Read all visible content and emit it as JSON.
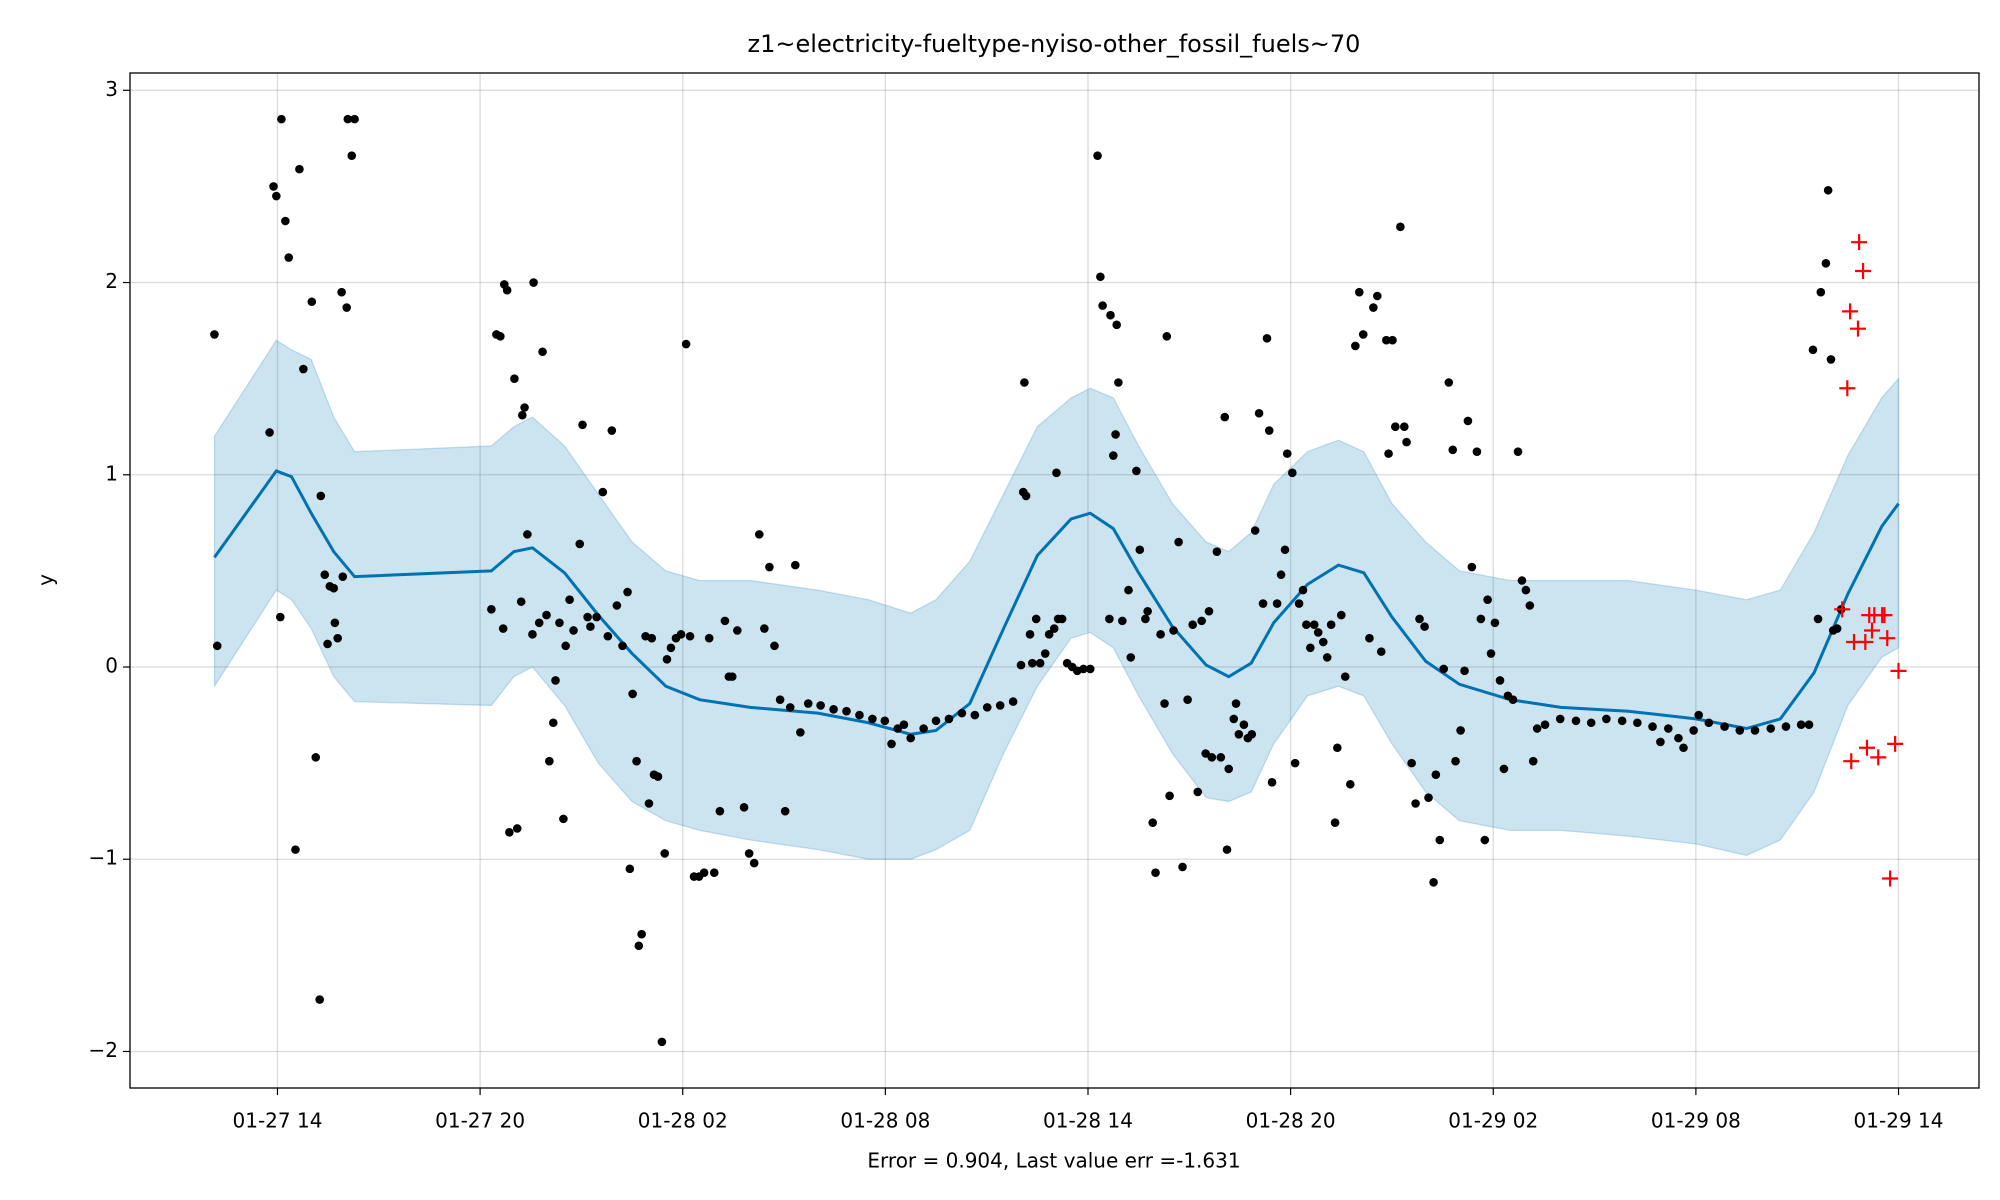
{
  "chart_data": {
    "type": "line",
    "title": "z1~electricity-fueltype-nyiso-other_fossil_fuels~70",
    "ylabel": "y",
    "xlabel": "Error = 0.904, Last value err =-1.631",
    "grid": true,
    "xlim": [
      "01-27 09:38",
      "01-29 16:23"
    ],
    "xticks": [
      "01-27 14",
      "01-27 20",
      "01-28 02",
      "01-28 08",
      "01-28 14",
      "01-28 20",
      "01-29 02",
      "01-29 08",
      "01-29 14"
    ],
    "ylim": [
      -2.19,
      3.09
    ],
    "yticks": [
      {
        "value": -2,
        "label": "−2"
      },
      {
        "value": -1,
        "label": "−1"
      },
      0,
      1,
      2,
      3
    ],
    "series": [
      {
        "color": "#0072b2",
        "marker": "none",
        "band_color": "#0072b2",
        "x": [
          "01-27 12:08",
          "01-27 13:58",
          "01-27 14:25",
          "01-27 15:00",
          "01-27 15:40",
          "01-27 16:17",
          "01-27 20:20",
          "01-27 21:00",
          "01-27 21:33",
          "01-27 22:30",
          "01-27 23:30",
          "01-28 00:30",
          "01-28 01:30",
          "01-28 02:30",
          "01-28 04:00",
          "01-28 06:00",
          "01-28 07:30",
          "01-28 08:45",
          "01-28 09:30",
          "01-28 10:30",
          "01-28 11:30",
          "01-28 12:30",
          "01-28 13:30",
          "01-28 14:04",
          "01-28 14:45",
          "01-28 15:30",
          "01-28 16:30",
          "01-28 17:30",
          "01-28 18:10",
          "01-28 18:50",
          "01-28 19:30",
          "01-28 20:30",
          "01-28 21:25",
          "01-28 22:10",
          "01-28 23:00",
          "01-29 00:00",
          "01-29 01:00",
          "01-29 02:30",
          "01-29 04:00",
          "01-29 06:00",
          "01-29 08:00",
          "01-29 09:30",
          "01-29 10:30",
          "01-29 11:30",
          "01-29 12:30",
          "01-29 13:30",
          "01-29 14:00"
        ],
        "values": [
          0.57,
          1.02,
          0.99,
          0.8,
          0.6,
          0.47,
          0.5,
          0.6,
          0.62,
          0.49,
          0.27,
          0.07,
          -0.1,
          -0.17,
          -0.21,
          -0.24,
          -0.29,
          -0.35,
          -0.33,
          -0.19,
          0.2,
          0.58,
          0.77,
          0.8,
          0.72,
          0.49,
          0.21,
          0.01,
          -0.05,
          0.02,
          0.23,
          0.43,
          0.53,
          0.49,
          0.26,
          0.03,
          -0.09,
          -0.17,
          -0.21,
          -0.23,
          -0.27,
          -0.32,
          -0.27,
          -0.03,
          0.38,
          0.73,
          0.85
        ],
        "upper": [
          1.2,
          1.7,
          1.65,
          1.6,
          1.3,
          1.12,
          1.15,
          1.25,
          1.3,
          1.15,
          0.9,
          0.65,
          0.5,
          0.45,
          0.45,
          0.4,
          0.35,
          0.28,
          0.35,
          0.55,
          0.9,
          1.25,
          1.4,
          1.45,
          1.4,
          1.15,
          0.85,
          0.65,
          0.6,
          0.7,
          0.95,
          1.12,
          1.18,
          1.12,
          0.85,
          0.65,
          0.5,
          0.45,
          0.45,
          0.45,
          0.4,
          0.35,
          0.4,
          0.7,
          1.1,
          1.4,
          1.5
        ],
        "lower": [
          -0.1,
          0.4,
          0.35,
          0.2,
          -0.05,
          -0.18,
          -0.2,
          -0.05,
          0.0,
          -0.2,
          -0.5,
          -0.7,
          -0.8,
          -0.85,
          -0.9,
          -0.95,
          -1.0,
          -1.0,
          -0.95,
          -0.85,
          -0.45,
          -0.1,
          0.15,
          0.18,
          0.1,
          -0.15,
          -0.45,
          -0.68,
          -0.7,
          -0.65,
          -0.4,
          -0.15,
          -0.1,
          -0.15,
          -0.4,
          -0.65,
          -0.8,
          -0.85,
          -0.85,
          -0.88,
          -0.92,
          -0.98,
          -0.9,
          -0.65,
          -0.2,
          0.05,
          0.1
        ]
      },
      {
        "color": "#000000",
        "marker": "dot",
        "x": [
          "01-27 12:08",
          "01-27 12:13",
          "01-27 13:46",
          "01-27 13:53",
          "01-27 13:58",
          "01-27 14:05",
          "01-27 14:07",
          "01-27 14:14",
          "01-27 14:20",
          "01-27 14:32",
          "01-27 14:39",
          "01-27 14:46",
          "01-27 15:01",
          "01-27 15:08",
          "01-27 15:15",
          "01-27 15:17",
          "01-27 15:24",
          "01-27 15:29",
          "01-27 15:33",
          "01-27 15:40",
          "01-27 15:42",
          "01-27 15:47",
          "01-27 15:54",
          "01-27 15:56",
          "01-27 16:03",
          "01-27 16:05",
          "01-27 16:12",
          "01-27 16:17",
          "01-27 20:20",
          "01-27 20:29",
          "01-27 20:36",
          "01-27 20:41",
          "01-27 20:43",
          "01-27 20:48",
          "01-27 20:52",
          "01-27 21:01",
          "01-27 21:06",
          "01-27 21:13",
          "01-27 21:15",
          "01-27 21:19",
          "01-27 21:24",
          "01-27 21:33",
          "01-27 21:35",
          "01-27 21:45",
          "01-27 21:51",
          "01-27 21:58",
          "01-27 22:03",
          "01-27 22:10",
          "01-27 22:14",
          "01-27 22:21",
          "01-27 22:28",
          "01-27 22:32",
          "01-27 22:39",
          "01-27 22:46",
          "01-27 22:57",
          "01-27 23:02",
          "01-27 23:11",
          "01-27 23:16",
          "01-27 23:27",
          "01-27 23:38",
          "01-27 23:47",
          "01-27 23:54",
          "01-28 00:03",
          "01-28 00:13",
          "01-28 00:22",
          "01-28 00:26",
          "01-28 00:31",
          "01-28 00:38",
          "01-28 00:42",
          "01-28 00:47",
          "01-28 00:54",
          "01-28 01:00",
          "01-28 01:05",
          "01-28 01:09",
          "01-28 01:16",
          "01-28 01:23",
          "01-28 01:28",
          "01-28 01:32",
          "01-28 01:39",
          "01-28 01:48",
          "01-28 01:57",
          "01-28 02:06",
          "01-28 02:13",
          "01-28 02:20",
          "01-28 02:29",
          "01-28 02:38",
          "01-28 02:47",
          "01-28 02:56",
          "01-28 03:06",
          "01-28 03:15",
          "01-28 03:22",
          "01-28 03:28",
          "01-28 03:37",
          "01-28 03:49",
          "01-28 03:58",
          "01-28 04:07",
          "01-28 04:16",
          "01-28 04:25",
          "01-28 04:34",
          "01-28 04:43",
          "01-28 04:53",
          "01-28 05:02",
          "01-28 05:11",
          "01-28 05:20",
          "01-28 05:29",
          "01-28 05:43",
          "01-28 06:05",
          "01-28 06:28",
          "01-28 06:51",
          "01-28 07:14",
          "01-28 07:37",
          "01-28 07:59",
          "01-28 08:11",
          "01-28 08:22",
          "01-28 08:33",
          "01-28 08:45",
          "01-28 09:08",
          "01-28 09:30",
          "01-28 09:53",
          "01-28 10:16",
          "01-28 10:39",
          "01-28 11:01",
          "01-28 11:24",
          "01-28 11:47",
          "01-28 12:01",
          "01-28 12:05",
          "01-28 12:07",
          "01-28 12:10",
          "01-28 12:17",
          "01-28 12:21",
          "01-28 12:28",
          "01-28 12:35",
          "01-28 12:44",
          "01-28 12:51",
          "01-28 13:00",
          "01-28 13:04",
          "01-28 13:07",
          "01-28 13:14",
          "01-28 13:23",
          "01-28 13:32",
          "01-28 13:41",
          "01-28 13:52",
          "01-28 14:04",
          "01-28 14:17",
          "01-28 14:22",
          "01-28 14:26",
          "01-28 14:38",
          "01-28 14:40",
          "01-28 14:45",
          "01-28 14:49",
          "01-28 14:51",
          "01-28 14:54",
          "01-28 15:01",
          "01-28 15:12",
          "01-28 15:16",
          "01-28 15:26",
          "01-28 15:32",
          "01-28 15:42",
          "01-28 15:46",
          "01-28 15:55",
          "01-28 16:00",
          "01-28 16:09",
          "01-28 16:16",
          "01-28 16:20",
          "01-28 16:25",
          "01-28 16:32",
          "01-28 16:41",
          "01-28 16:48",
          "01-28 16:57",
          "01-28 17:06",
          "01-28 17:15",
          "01-28 17:22",
          "01-28 17:29",
          "01-28 17:35",
          "01-28 17:40",
          "01-28 17:49",
          "01-28 17:56",
          "01-28 18:03",
          "01-28 18:07",
          "01-28 18:10",
          "01-28 18:19",
          "01-28 18:23",
          "01-28 18:28",
          "01-28 18:37",
          "01-28 18:44",
          "01-28 18:51",
          "01-28 18:57",
          "01-28 19:04",
          "01-28 19:11",
          "01-28 19:18",
          "01-28 19:22",
          "01-28 19:27",
          "01-28 19:36",
          "01-28 19:43",
          "01-28 19:50",
          "01-28 19:54",
          "01-28 20:03",
          "01-28 20:08",
          "01-28 20:15",
          "01-28 20:22",
          "01-28 20:28",
          "01-28 20:35",
          "01-28 20:42",
          "01-28 20:49",
          "01-28 20:58",
          "01-28 21:05",
          "01-28 21:12",
          "01-28 21:19",
          "01-28 21:23",
          "01-28 21:30",
          "01-28 21:37",
          "01-28 21:46",
          "01-28 21:55",
          "01-28 22:02",
          "01-28 22:09",
          "01-28 22:20",
          "01-28 22:27",
          "01-28 22:34",
          "01-28 22:41",
          "01-28 22:50",
          "01-28 22:54",
          "01-28 23:01",
          "01-28 23:06",
          "01-28 23:15",
          "01-28 23:22",
          "01-28 23:26",
          "01-28 23:35",
          "01-28 23:42",
          "01-28 23:49",
          "01-28 23:58",
          "01-29 00:05",
          "01-29 00:14",
          "01-29 00:18",
          "01-29 00:25",
          "01-29 00:32",
          "01-29 00:41",
          "01-29 00:48",
          "01-29 00:53",
          "01-29 01:02",
          "01-29 01:09",
          "01-29 01:15",
          "01-29 01:22",
          "01-29 01:31",
          "01-29 01:38",
          "01-29 01:45",
          "01-29 01:50",
          "01-29 01:56",
          "01-29 02:03",
          "01-29 02:12",
          "01-29 02:19",
          "01-29 02:26",
          "01-29 02:35",
          "01-29 02:44",
          "01-29 02:51",
          "01-29 02:58",
          "01-29 03:05",
          "01-29 03:11",
          "01-29 03:18",
          "01-29 03:32",
          "01-29 03:59",
          "01-29 04:27",
          "01-29 04:54",
          "01-29 05:21",
          "01-29 05:49",
          "01-29 06:16",
          "01-29 06:43",
          "01-29 06:57",
          "01-29 07:11",
          "01-29 07:29",
          "01-29 07:38",
          "01-29 07:56",
          "01-29 08:05",
          "01-29 08:23",
          "01-29 08:51",
          "01-29 09:18",
          "01-29 09:45",
          "01-29 10:13",
          "01-29 10:40",
          "01-29 11:07",
          "01-29 11:21",
          "01-29 11:28",
          "01-29 11:37",
          "01-29 11:42",
          "01-29 11:51",
          "01-29 11:55",
          "01-29 12:00",
          "01-29 12:04",
          "01-29 12:11",
          "01-29 12:18"
        ],
        "values": [
          1.73,
          0.11,
          1.22,
          2.5,
          2.45,
          0.26,
          2.85,
          2.32,
          2.13,
          -0.95,
          2.59,
          1.55,
          1.9,
          -0.47,
          -1.73,
          0.89,
          0.48,
          0.12,
          0.42,
          0.41,
          0.23,
          0.15,
          1.95,
          0.47,
          1.87,
          2.85,
          2.66,
          2.85,
          0.3,
          1.73,
          1.72,
          0.2,
          1.99,
          1.96,
          -0.86,
          1.5,
          -0.84,
          0.34,
          1.31,
          1.35,
          0.69,
          0.17,
          2.0,
          0.23,
          1.64,
          0.27,
          -0.49,
          -0.29,
          -0.07,
          0.23,
          -0.79,
          0.11,
          0.35,
          0.19,
          0.64,
          1.26,
          0.26,
          0.21,
          0.26,
          0.91,
          0.16,
          1.23,
          0.32,
          0.11,
          0.39,
          -1.05,
          -0.14,
          -0.49,
          -1.45,
          -1.39,
          0.16,
          -0.71,
          0.15,
          -0.56,
          -0.57,
          -1.95,
          -0.97,
          0.04,
          0.1,
          0.15,
          0.17,
          1.68,
          0.16,
          -1.09,
          -1.09,
          -1.07,
          0.15,
          -1.07,
          -0.75,
          0.24,
          -0.05,
          -0.05,
          0.19,
          -0.73,
          -0.97,
          -1.02,
          0.69,
          0.2,
          0.52,
          0.11,
          -0.17,
          -0.75,
          -0.21,
          0.53,
          -0.34,
          -0.19,
          -0.2,
          -0.22,
          -0.23,
          -0.25,
          -0.27,
          -0.28,
          -0.4,
          -0.32,
          -0.3,
          -0.37,
          -0.32,
          -0.28,
          -0.27,
          -0.24,
          -0.25,
          -0.21,
          -0.2,
          -0.18,
          0.01,
          0.91,
          1.48,
          0.89,
          0.17,
          0.02,
          0.25,
          0.02,
          0.07,
          0.17,
          0.2,
          1.01,
          0.25,
          0.25,
          0.02,
          0.0,
          -0.02,
          -0.01,
          -0.01,
          2.66,
          2.03,
          1.88,
          0.25,
          1.83,
          1.1,
          1.21,
          1.78,
          1.48,
          0.24,
          0.4,
          0.05,
          1.02,
          0.61,
          0.25,
          0.29,
          -0.81,
          -1.07,
          0.17,
          -0.19,
          1.72,
          -0.67,
          0.19,
          0.65,
          -1.04,
          -0.17,
          0.22,
          -0.65,
          0.24,
          -0.45,
          0.29,
          -0.47,
          0.6,
          -0.47,
          1.3,
          -0.95,
          -0.53,
          -0.27,
          -0.19,
          -0.35,
          -0.3,
          -0.37,
          -0.35,
          0.71,
          1.32,
          0.33,
          1.71,
          1.23,
          -0.6,
          0.33,
          0.48,
          0.61,
          1.11,
          1.01,
          -0.5,
          0.33,
          0.4,
          0.22,
          0.1,
          0.22,
          0.18,
          0.13,
          0.05,
          0.22,
          -0.81,
          -0.42,
          0.27,
          -0.05,
          -0.61,
          1.67,
          1.95,
          1.73,
          0.15,
          1.87,
          1.93,
          0.08,
          1.7,
          1.11,
          1.7,
          1.25,
          2.29,
          1.25,
          1.17,
          -0.5,
          -0.71,
          0.25,
          0.21,
          -0.68,
          -1.12,
          -0.56,
          -0.9,
          -0.01,
          1.48,
          1.13,
          -0.49,
          -0.33,
          -0.02,
          1.28,
          0.52,
          1.12,
          0.25,
          -0.9,
          0.35,
          0.07,
          0.23,
          -0.07,
          -0.53,
          -0.15,
          -0.17,
          1.12,
          0.45,
          0.4,
          0.32,
          -0.49,
          -0.32,
          -0.3,
          -0.27,
          -0.28,
          -0.29,
          -0.27,
          -0.28,
          -0.29,
          -0.31,
          -0.39,
          -0.32,
          -0.37,
          -0.42,
          -0.33,
          -0.25,
          -0.29,
          -0.31,
          -0.33,
          -0.33,
          -0.32,
          -0.31,
          -0.3,
          -0.3,
          1.65,
          0.25,
          1.95,
          2.1,
          2.48,
          1.6,
          0.19,
          0.2,
          0.3
        ]
      },
      {
        "color": "#ff0000",
        "marker": "plus",
        "x": [
          "01-29 12:20",
          "01-29 12:29",
          "01-29 12:34",
          "01-29 12:36",
          "01-29 12:41",
          "01-29 12:48",
          "01-29 12:50",
          "01-29 12:57",
          "01-29 13:01",
          "01-29 13:04",
          "01-29 13:08",
          "01-29 13:13",
          "01-29 13:17",
          "01-29 13:24",
          "01-29 13:31",
          "01-29 13:35",
          "01-29 13:40",
          "01-29 13:45",
          "01-29 13:54",
          "01-29 14:00"
        ],
        "values": [
          0.3,
          1.45,
          1.85,
          -0.49,
          0.13,
          1.76,
          2.21,
          2.06,
          0.13,
          -0.42,
          0.27,
          0.19,
          0.27,
          -0.47,
          0.27,
          0.27,
          0.15,
          -1.1,
          -0.4,
          -0.02
        ]
      }
    ]
  }
}
